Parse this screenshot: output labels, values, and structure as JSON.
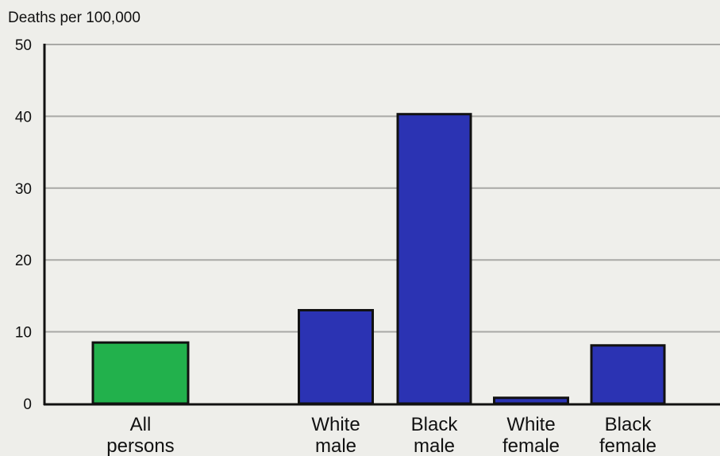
{
  "chart_data": {
    "type": "bar",
    "title": "",
    "xlabel": "",
    "ylabel": "Deaths per 100,000",
    "ylim": [
      0,
      50
    ],
    "yticks": [
      0,
      10,
      20,
      30,
      40,
      50
    ],
    "grid": true,
    "categories": [
      {
        "lines": [
          "All",
          "persons"
        ],
        "value": 8.5,
        "color": "#22b14c"
      },
      {
        "lines": [
          "White",
          "male"
        ],
        "value": 13.0,
        "color": "#2b33b3"
      },
      {
        "lines": [
          "Black",
          "male"
        ],
        "value": 40.3,
        "color": "#2b33b3"
      },
      {
        "lines": [
          "White",
          "female"
        ],
        "value": 0.8,
        "color": "#2b33b3"
      },
      {
        "lines": [
          "Black",
          "female"
        ],
        "value": 8.1,
        "color": "#2b33b3"
      }
    ]
  }
}
